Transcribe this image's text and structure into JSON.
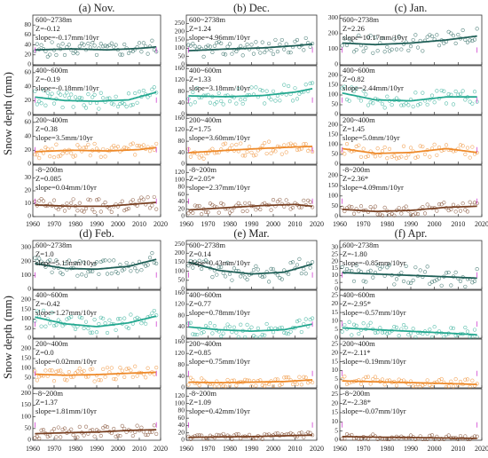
{
  "figure": {
    "ylabel": "Snow depth (mm)",
    "colors": {
      "600-2738m": "#1f5f57",
      "400-600m": "#24a890",
      "200-400m": "#ee8a2a",
      "-8-200m": "#7a4224",
      "marker": "#d040d0"
    }
  },
  "chart_data": [
    {
      "type": "scatter",
      "title": "(a) Nov.",
      "x_ticks": [
        1960,
        1970,
        1980,
        1990,
        2000,
        2010,
        2020
      ],
      "panels": [
        {
          "series": "600~2738m",
          "stats": [
            "600~2738m",
            "Z=-0.12",
            "slope=-0.17mm/10yr"
          ],
          "ylim": [
            0,
            100
          ],
          "yticks": [
            0,
            20,
            40,
            60,
            80
          ],
          "trend": [
            [
              1961,
              30
            ],
            [
              1978,
              32
            ],
            [
              1995,
              30
            ],
            [
              2010,
              33
            ],
            [
              2018,
              36
            ]
          ],
          "mean": 35,
          "spread": 15
        },
        {
          "series": "400~600m",
          "stats": [
            "400~600m",
            "Z=-0.19",
            "slope=-0.18mm/10yr"
          ],
          "ylim": [
            0,
            70
          ],
          "yticks": [
            0,
            20,
            40,
            60
          ],
          "trend": [
            [
              1961,
              25
            ],
            [
              1975,
              20
            ],
            [
              1990,
              19
            ],
            [
              2005,
              21
            ],
            [
              2018,
              32
            ]
          ],
          "mean": 24,
          "spread": 12
        },
        {
          "series": "200~400m",
          "stats": [
            "200~400m",
            "Z=0.38",
            "slope=3.5mm/10yr"
          ],
          "ylim": [
            0,
            70
          ],
          "yticks": [
            0,
            20,
            40,
            60
          ],
          "trend": [
            [
              1961,
              18
            ],
            [
              1978,
              20
            ],
            [
              1995,
              19
            ],
            [
              2010,
              21
            ],
            [
              2018,
              24
            ]
          ],
          "mean": 20,
          "spread": 10
        },
        {
          "series": "-8~200m",
          "stats": [
            "-8~200m",
            "Z=0.085",
            "slope=0.04mm/10yr"
          ],
          "ylim": [
            0,
            40
          ],
          "yticks": [
            0,
            10,
            20,
            30
          ],
          "trend": [
            [
              1961,
              9
            ],
            [
              1978,
              8
            ],
            [
              1995,
              8
            ],
            [
              2010,
              10
            ],
            [
              2018,
              11
            ]
          ],
          "mean": 9,
          "spread": 6
        }
      ]
    },
    {
      "type": "scatter",
      "title": "(b) Dec.",
      "x_ticks": [
        1960,
        1970,
        1980,
        1990,
        2000,
        2010,
        2020
      ],
      "panels": [
        {
          "series": "600~2738m",
          "stats": [
            "600~2738m",
            "Z=1.24",
            "slope=4.96mm/10yr"
          ],
          "ylim": [
            0,
            300
          ],
          "yticks": [
            0,
            50,
            100,
            150,
            200,
            250
          ],
          "trend": [
            [
              1961,
              85
            ],
            [
              1978,
              95
            ],
            [
              1995,
              102
            ],
            [
              2010,
              115
            ],
            [
              2018,
              125
            ]
          ],
          "mean": 100,
          "spread": 45
        },
        {
          "series": "400~600m",
          "stats": [
            "400~600m",
            "Z=1.33",
            "slope=3.18mm/10yr"
          ],
          "ylim": [
            0,
            170
          ],
          "yticks": [
            0,
            40,
            80,
            120,
            160
          ],
          "trend": [
            [
              1961,
              65
            ],
            [
              1978,
              62
            ],
            [
              1995,
              66
            ],
            [
              2010,
              78
            ],
            [
              2018,
              90
            ]
          ],
          "mean": 70,
          "spread": 30
        },
        {
          "series": "200~400m",
          "stats": [
            "200~400m",
            "Z=1.75",
            "slope=3.60mm/10yr"
          ],
          "ylim": [
            0,
            170
          ],
          "yticks": [
            0,
            40,
            80,
            120,
            160
          ],
          "trend": [
            [
              1961,
              40
            ],
            [
              1978,
              48
            ],
            [
              1995,
              55
            ],
            [
              2010,
              60
            ],
            [
              2018,
              62
            ]
          ],
          "mean": 52,
          "spread": 25
        },
        {
          "series": "-8~200m",
          "stats": [
            "-8~200m",
            "Z=2.05*",
            "slope=2.37mm/10yr"
          ],
          "ylim": [
            0,
            140
          ],
          "yticks": [
            0,
            20,
            40,
            60,
            80,
            100,
            120
          ],
          "trend": [
            [
              1961,
              18
            ],
            [
              1978,
              24
            ],
            [
              1995,
              30
            ],
            [
              2010,
              33
            ],
            [
              2018,
              28
            ]
          ],
          "mean": 26,
          "spread": 15
        }
      ]
    },
    {
      "type": "scatter",
      "title": "(c) Jan.",
      "x_ticks": [
        1960,
        1970,
        1980,
        1990,
        2000,
        2010,
        2020
      ],
      "panels": [
        {
          "series": "600~2738m",
          "stats": [
            "600~2738m",
            "Z=2.26",
            "slope=10.17mm/10yr"
          ],
          "ylim": [
            0,
            320
          ],
          "yticks": [
            0,
            100,
            200,
            300
          ],
          "trend": [
            [
              1961,
              140
            ],
            [
              1975,
              130
            ],
            [
              1990,
              140
            ],
            [
              2005,
              160
            ],
            [
              2018,
              185
            ]
          ],
          "mean": 150,
          "spread": 60
        },
        {
          "series": "400~600m",
          "stats": [
            "400~600m",
            "Z=0.82",
            "slope=2.44mm/10yr"
          ],
          "ylim": [
            0,
            250
          ],
          "yticks": [
            0,
            50,
            100,
            150,
            200
          ],
          "trend": [
            [
              1961,
              110
            ],
            [
              1975,
              75
            ],
            [
              1990,
              70
            ],
            [
              2005,
              90
            ],
            [
              2018,
              90
            ]
          ],
          "mean": 90,
          "spread": 40
        },
        {
          "series": "200~400m",
          "stats": [
            "200~400m",
            "Z=1.45",
            "slope=5.0mm/10yr"
          ],
          "ylim": [
            0,
            250
          ],
          "yticks": [
            0,
            50,
            100,
            150,
            200
          ],
          "trend": [
            [
              1961,
              80
            ],
            [
              1975,
              55
            ],
            [
              1990,
              60
            ],
            [
              2005,
              80
            ],
            [
              2018,
              60
            ]
          ],
          "mean": 70,
          "spread": 35
        },
        {
          "series": "-8~200m",
          "stats": [
            "-8~200m",
            "Z=2.36*",
            "slope=4.09mm/10yr"
          ],
          "ylim": [
            0,
            250
          ],
          "yticks": [
            0,
            50,
            100,
            150,
            200
          ],
          "trend": [
            [
              1961,
              35
            ],
            [
              1975,
              25
            ],
            [
              1990,
              30
            ],
            [
              2005,
              45
            ],
            [
              2018,
              50
            ]
          ],
          "mean": 38,
          "spread": 25
        }
      ]
    },
    {
      "type": "scatter",
      "title": "(d) Feb.",
      "x_ticks": [
        1960,
        1970,
        1980,
        1990,
        2000,
        2010,
        2020
      ],
      "panels": [
        {
          "series": "600~2738m",
          "stats": [
            "600~2738m",
            "Z=1.0",
            "slope=5.15mm/10yr"
          ],
          "ylim": [
            0,
            350
          ],
          "yticks": [
            0,
            100,
            200,
            300
          ],
          "trend": [
            [
              1961,
              185
            ],
            [
              1975,
              150
            ],
            [
              1990,
              145
            ],
            [
              2005,
              165
            ],
            [
              2018,
              215
            ]
          ],
          "mean": 170,
          "spread": 60
        },
        {
          "series": "400~600m",
          "stats": [
            "400~600m",
            "Z=-0.42",
            "slope=1.27mm/10yr"
          ],
          "ylim": [
            0,
            250
          ],
          "yticks": [
            0,
            50,
            100,
            150,
            200
          ],
          "trend": [
            [
              1961,
              110
            ],
            [
              1975,
              75
            ],
            [
              1990,
              60
            ],
            [
              2005,
              80
            ],
            [
              2018,
              115
            ]
          ],
          "mean": 85,
          "spread": 45
        },
        {
          "series": "200~400m",
          "stats": [
            "200~400m",
            "Z=0.0",
            "slope=0.02mm/10yr"
          ],
          "ylim": [
            0,
            250
          ],
          "yticks": [
            0,
            50,
            100,
            150,
            200
          ],
          "trend": [
            [
              1961,
              70
            ],
            [
              1975,
              65
            ],
            [
              1990,
              68
            ],
            [
              2005,
              75
            ],
            [
              2018,
              80
            ]
          ],
          "mean": 72,
          "spread": 35
        },
        {
          "series": "-8~200m",
          "stats": [
            "-8~200m",
            "Z=1.37",
            "slope=1.81mm/10yr"
          ],
          "ylim": [
            0,
            220
          ],
          "yticks": [
            0,
            50,
            100,
            150,
            200
          ],
          "trend": [
            [
              1961,
              28
            ],
            [
              1975,
              32
            ],
            [
              1990,
              35
            ],
            [
              2005,
              42
            ],
            [
              2018,
              45
            ]
          ],
          "mean": 36,
          "spread": 25
        }
      ]
    },
    {
      "type": "scatter",
      "title": "(e) Mar.",
      "x_ticks": [
        1960,
        1970,
        1980,
        1990,
        2000,
        2010,
        2020
      ],
      "panels": [
        {
          "series": "600~2738m",
          "stats": [
            "600~2738m",
            "Z=0.14",
            "slope=0.43mm/10yr"
          ],
          "ylim": [
            0,
            270
          ],
          "yticks": [
            0,
            50,
            100,
            150,
            200,
            250
          ],
          "trend": [
            [
              1961,
              150
            ],
            [
              1975,
              105
            ],
            [
              1990,
              85
            ],
            [
              2005,
              95
            ],
            [
              2018,
              140
            ]
          ],
          "mean": 115,
          "spread": 50
        },
        {
          "series": "400~600m",
          "stats": [
            "400~600m",
            "Z=0.77",
            "slope=0.78mm/10yr"
          ],
          "ylim": [
            0,
            170
          ],
          "yticks": [
            0,
            40,
            80,
            120,
            160
          ],
          "trend": [
            [
              1961,
              40
            ],
            [
              1975,
              30
            ],
            [
              1990,
              25
            ],
            [
              2005,
              30
            ],
            [
              2018,
              50
            ]
          ],
          "mean": 35,
          "spread": 25
        },
        {
          "series": "200~400m",
          "stats": [
            "200~400m",
            "Z=0.85",
            "slope=0.75mm/10yr"
          ],
          "ylim": [
            0,
            170
          ],
          "yticks": [
            0,
            40,
            80,
            120,
            160
          ],
          "trend": [
            [
              1961,
              20
            ],
            [
              1975,
              18
            ],
            [
              1990,
              20
            ],
            [
              2005,
              22
            ],
            [
              2018,
              28
            ]
          ],
          "mean": 22,
          "spread": 15
        },
        {
          "series": "-8~200m",
          "stats": [
            "-8~200m",
            "Z=1.09",
            "slope=0.42mm/10yr"
          ],
          "ylim": [
            0,
            140
          ],
          "yticks": [
            0,
            20,
            40,
            60,
            80,
            100,
            120
          ],
          "trend": [
            [
              1961,
              8
            ],
            [
              1975,
              9
            ],
            [
              1990,
              10
            ],
            [
              2005,
              12
            ],
            [
              2018,
              14
            ]
          ],
          "mean": 10,
          "spread": 8
        }
      ]
    },
    {
      "type": "scatter",
      "title": "(f) Apr.",
      "x_ticks": [
        1960,
        1970,
        1980,
        1990,
        2000,
        2010,
        2020
      ],
      "panels": [
        {
          "series": "600~2738m",
          "stats": [
            "600~2738m",
            "Z=-1.80",
            "slope=-0.85mm/10yr"
          ],
          "ylim": [
            0,
            35
          ],
          "yticks": [
            0,
            5,
            10,
            15,
            20,
            25,
            30
          ],
          "trend": [
            [
              1961,
              12
            ],
            [
              1975,
              11
            ],
            [
              1990,
              10
            ],
            [
              2005,
              9
            ],
            [
              2018,
              8
            ]
          ],
          "mean": 10,
          "spread": 7
        },
        {
          "series": "400~600m",
          "stats": [
            "400~600m",
            "Z=-2.95*",
            "slope=-0.57mm/10yr"
          ],
          "ylim": [
            0,
            28
          ],
          "yticks": [
            0,
            5,
            10,
            15,
            20,
            25
          ],
          "trend": [
            [
              1961,
              6
            ],
            [
              1975,
              5
            ],
            [
              1990,
              4
            ],
            [
              2005,
              3
            ],
            [
              2018,
              2
            ]
          ],
          "mean": 4,
          "spread": 4
        },
        {
          "series": "200~400m",
          "stats": [
            "200~400m",
            "Z=-2.11*",
            "slope=-0.19mm/10yr"
          ],
          "ylim": [
            0,
            28
          ],
          "yticks": [
            0,
            5,
            10,
            15,
            20,
            25
          ],
          "trend": [
            [
              1961,
              4
            ],
            [
              1975,
              3.5
            ],
            [
              1990,
              3
            ],
            [
              2005,
              2.5
            ],
            [
              2018,
              2
            ]
          ],
          "mean": 3,
          "spread": 3
        },
        {
          "series": "-8~200m",
          "stats": [
            "-8~200m",
            "Z=-2.38*",
            "slope=-0.07mm/10yr"
          ],
          "ylim": [
            0,
            28
          ],
          "yticks": [
            0,
            5,
            10,
            15,
            20,
            25
          ],
          "trend": [
            [
              1961,
              2
            ],
            [
              1975,
              1.7
            ],
            [
              1990,
              1.5
            ],
            [
              2005,
              1.2
            ],
            [
              2018,
              1
            ]
          ],
          "mean": 1.5,
          "spread": 1.5
        }
      ]
    }
  ]
}
